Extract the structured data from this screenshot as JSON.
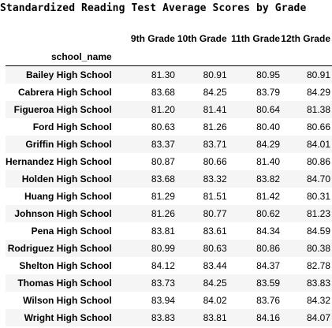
{
  "title": "Standardized Reading Test Average Scores by Grade",
  "index_name": "school_name",
  "columns": [
    "9th Grade",
    "10th Grade",
    "11th Grade",
    "12th Grade"
  ],
  "rows": [
    {
      "school": "Bailey High School",
      "values": [
        "81.30",
        "80.91",
        "80.95",
        "80.91"
      ]
    },
    {
      "school": "Cabrera High School",
      "values": [
        "83.68",
        "84.25",
        "83.79",
        "84.29"
      ]
    },
    {
      "school": "Figueroa High School",
      "values": [
        "81.20",
        "81.41",
        "80.64",
        "81.38"
      ]
    },
    {
      "school": "Ford High School",
      "values": [
        "80.63",
        "81.26",
        "80.40",
        "80.66"
      ]
    },
    {
      "school": "Griffin High School",
      "values": [
        "83.37",
        "83.71",
        "84.29",
        "84.01"
      ]
    },
    {
      "school": "Hernandez High School",
      "values": [
        "80.87",
        "80.66",
        "81.40",
        "80.86"
      ]
    },
    {
      "school": "Holden High School",
      "values": [
        "83.68",
        "83.32",
        "83.82",
        "84.70"
      ]
    },
    {
      "school": "Huang High School",
      "values": [
        "81.29",
        "81.51",
        "81.42",
        "80.31"
      ]
    },
    {
      "school": "Johnson High School",
      "values": [
        "81.26",
        "80.77",
        "80.62",
        "81.23"
      ]
    },
    {
      "school": "Pena High School",
      "values": [
        "83.81",
        "83.61",
        "84.34",
        "84.59"
      ]
    },
    {
      "school": "Rodriguez High School",
      "values": [
        "80.99",
        "80.63",
        "80.86",
        "80.38"
      ]
    },
    {
      "school": "Shelton High School",
      "values": [
        "84.12",
        "83.44",
        "84.37",
        "82.78"
      ]
    },
    {
      "school": "Thomas High School",
      "values": [
        "83.73",
        "84.25",
        "83.59",
        "83.83"
      ]
    },
    {
      "school": "Wilson High School",
      "values": [
        "83.94",
        "84.02",
        "83.76",
        "84.32"
      ]
    },
    {
      "school": "Wright High School",
      "values": [
        "83.83",
        "83.81",
        "84.16",
        "84.07"
      ]
    }
  ]
}
